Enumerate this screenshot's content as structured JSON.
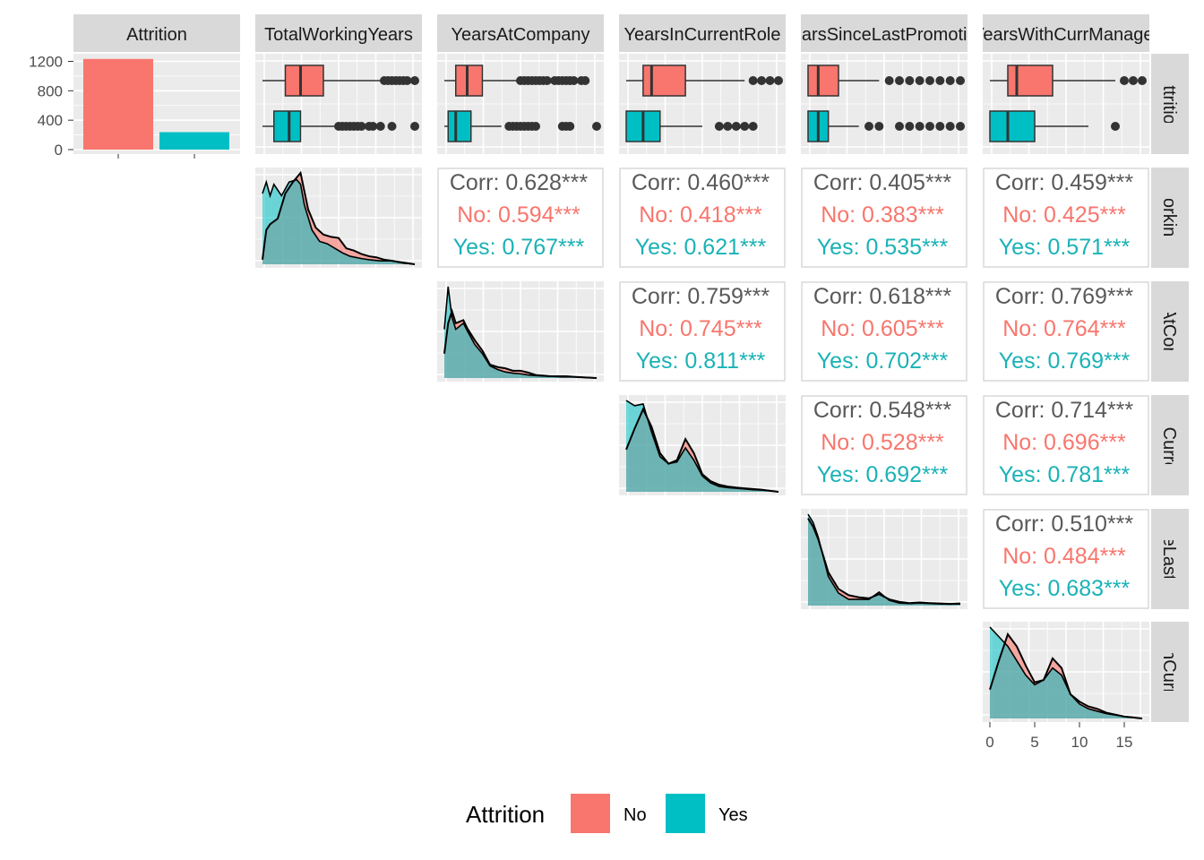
{
  "legend": {
    "title": "Attrition",
    "items": [
      {
        "label": "No",
        "color": "#F8766D"
      },
      {
        "label": "Yes",
        "color": "#00BFC4"
      }
    ]
  },
  "chart_data": {
    "type": "pairs-matrix",
    "variables": [
      "Attrition",
      "TotalWorkingYears",
      "YearsAtCompany",
      "YearsInCurrentRole",
      "YearsSinceLastPromotion",
      "YearsWithCurrManager"
    ],
    "column_strip_labels": [
      "Attrition",
      "TotalWorkingYears",
      "YearsAtCompany",
      "YearsInCurrentRole",
      "YearsSinceLastPromotion",
      "YearsWithCurrManager"
    ],
    "row_strip_labels": [
      "Attrition",
      "TotalWorkingYears",
      "YearsAtCompany",
      "YearsInCurrentRole",
      "YearsSinceLastPromotion",
      "YearsWithCurrManager"
    ],
    "colors": {
      "No": "#F8766D",
      "Yes": "#00BFC4",
      "overall": "#595959",
      "panel_bg": "#EBEBEB",
      "strip_bg": "#D9D9D9"
    },
    "attrition_counts": {
      "categories": [
        "No",
        "Yes"
      ],
      "values": [
        1233,
        237
      ],
      "y_ticks": [
        0,
        400,
        800,
        1200
      ],
      "ylim": [
        0,
        1300
      ]
    },
    "x_ticks": {
      "values": [
        0,
        5,
        10,
        15
      ],
      "labels": [
        "0",
        "5",
        "10",
        "15"
      ],
      "xlim": [
        0,
        17
      ]
    },
    "boxplots": [
      {
        "variable": "TotalWorkingYears",
        "xmax": 40,
        "No": {
          "min": 0,
          "q1": 6,
          "median": 10,
          "q3": 16,
          "max": 31,
          "outliers": [
            32,
            33,
            34,
            35,
            36,
            37,
            38,
            40
          ]
        },
        "Yes": {
          "min": 0,
          "q1": 3,
          "median": 7,
          "q3": 10,
          "max": 19,
          "outliers": [
            20,
            21,
            22,
            23,
            24,
            25,
            26,
            28,
            29,
            31,
            34,
            40
          ]
        }
      },
      {
        "variable": "YearsAtCompany",
        "xmax": 40,
        "No": {
          "min": 0,
          "q1": 3,
          "median": 6,
          "q3": 10,
          "max": 19,
          "outliers": [
            20,
            21,
            22,
            23,
            24,
            25,
            26,
            27,
            29,
            30,
            31,
            32,
            33,
            34,
            36,
            37
          ]
        },
        "Yes": {
          "min": 0,
          "q1": 1,
          "median": 3,
          "q3": 7,
          "max": 15,
          "outliers": [
            17,
            18,
            19,
            20,
            21,
            22,
            23,
            24,
            31,
            32,
            33,
            40
          ]
        }
      },
      {
        "variable": "YearsInCurrentRole",
        "xmax": 18,
        "No": {
          "min": 0,
          "q1": 2,
          "median": 3,
          "q3": 7,
          "max": 14,
          "outliers": [
            15,
            16,
            17,
            18
          ]
        },
        "Yes": {
          "min": 0,
          "q1": 0,
          "median": 2,
          "q3": 4,
          "max": 9,
          "outliers": [
            11,
            12,
            13,
            14,
            15
          ]
        }
      },
      {
        "variable": "YearsSinceLastPromotion",
        "xmax": 15,
        "No": {
          "min": 0,
          "q1": 0,
          "median": 1,
          "q3": 3,
          "max": 7,
          "outliers": [
            8,
            9,
            10,
            11,
            12,
            13,
            14,
            15
          ]
        },
        "Yes": {
          "min": 0,
          "q1": 0,
          "median": 1,
          "q3": 2,
          "max": 5,
          "outliers": [
            6,
            7,
            9,
            10,
            11,
            12,
            13,
            14,
            15
          ]
        }
      },
      {
        "variable": "YearsWithCurrManager",
        "xmax": 17,
        "No": {
          "min": 0,
          "q1": 2,
          "median": 3,
          "q3": 7,
          "max": 14,
          "outliers": [
            15,
            16,
            17
          ]
        },
        "Yes": {
          "min": 0,
          "q1": 0,
          "median": 2,
          "q3": 5,
          "max": 11,
          "outliers": [
            14
          ]
        }
      }
    ],
    "density": [
      {
        "variable": "TotalWorkingYears",
        "xmax": 40,
        "No": [
          [
            0,
            0.004
          ],
          [
            1,
            0.03
          ],
          [
            2,
            0.035
          ],
          [
            4,
            0.04
          ],
          [
            6,
            0.062
          ],
          [
            8,
            0.072
          ],
          [
            10,
            0.08
          ],
          [
            12,
            0.048
          ],
          [
            14,
            0.032
          ],
          [
            16,
            0.026
          ],
          [
            18,
            0.024
          ],
          [
            20,
            0.023
          ],
          [
            22,
            0.014
          ],
          [
            24,
            0.012
          ],
          [
            26,
            0.009
          ],
          [
            28,
            0.007
          ],
          [
            30,
            0.006
          ],
          [
            32,
            0.004
          ],
          [
            34,
            0.003
          ],
          [
            36,
            0.002
          ],
          [
            38,
            0.001
          ],
          [
            40,
            0.0
          ]
        ],
        "Yes": [
          [
            0,
            0.062
          ],
          [
            1,
            0.072
          ],
          [
            2,
            0.06
          ],
          [
            3,
            0.07
          ],
          [
            5,
            0.06
          ],
          [
            7,
            0.072
          ],
          [
            9,
            0.074
          ],
          [
            10,
            0.07
          ],
          [
            11,
            0.052
          ],
          [
            13,
            0.03
          ],
          [
            15,
            0.02
          ],
          [
            17,
            0.018
          ],
          [
            19,
            0.014
          ],
          [
            21,
            0.01
          ],
          [
            23,
            0.007
          ],
          [
            26,
            0.005
          ],
          [
            28,
            0.004
          ],
          [
            31,
            0.003
          ],
          [
            34,
            0.003
          ],
          [
            37,
            0.001
          ],
          [
            40,
            0.0
          ]
        ]
      },
      {
        "variable": "YearsAtCompany",
        "xmax": 40,
        "No": [
          [
            0,
            0.04
          ],
          [
            1,
            0.09
          ],
          [
            2,
            0.11
          ],
          [
            3,
            0.09
          ],
          [
            5,
            0.095
          ],
          [
            6,
            0.082
          ],
          [
            8,
            0.062
          ],
          [
            10,
            0.045
          ],
          [
            12,
            0.022
          ],
          [
            14,
            0.018
          ],
          [
            16,
            0.016
          ],
          [
            18,
            0.012
          ],
          [
            20,
            0.012
          ],
          [
            22,
            0.009
          ],
          [
            24,
            0.005
          ],
          [
            26,
            0.004
          ],
          [
            28,
            0.003
          ],
          [
            30,
            0.003
          ],
          [
            32,
            0.003
          ],
          [
            34,
            0.002
          ],
          [
            37,
            0.001
          ],
          [
            40,
            0.0
          ]
        ],
        "Yes": [
          [
            0,
            0.08
          ],
          [
            1,
            0.15
          ],
          [
            2,
            0.1
          ],
          [
            3,
            0.08
          ],
          [
            5,
            0.09
          ],
          [
            6,
            0.078
          ],
          [
            8,
            0.055
          ],
          [
            10,
            0.04
          ],
          [
            12,
            0.02
          ],
          [
            14,
            0.014
          ],
          [
            16,
            0.01
          ],
          [
            18,
            0.008
          ],
          [
            20,
            0.007
          ],
          [
            22,
            0.005
          ],
          [
            24,
            0.004
          ],
          [
            27,
            0.003
          ],
          [
            31,
            0.002
          ],
          [
            34,
            0.002
          ],
          [
            37,
            0.001
          ],
          [
            40,
            0.0
          ]
        ]
      },
      {
        "variable": "YearsInCurrentRole",
        "xmax": 18,
        "No": [
          [
            0,
            0.12
          ],
          [
            1,
            0.18
          ],
          [
            2,
            0.235
          ],
          [
            3,
            0.185
          ],
          [
            4,
            0.11
          ],
          [
            5,
            0.08
          ],
          [
            6,
            0.09
          ],
          [
            7,
            0.15
          ],
          [
            8,
            0.11
          ],
          [
            9,
            0.05
          ],
          [
            10,
            0.03
          ],
          [
            11,
            0.02
          ],
          [
            12,
            0.015
          ],
          [
            13,
            0.012
          ],
          [
            14,
            0.01
          ],
          [
            15,
            0.008
          ],
          [
            16,
            0.006
          ],
          [
            17,
            0.003
          ],
          [
            18,
            0.0
          ]
        ],
        "Yes": [
          [
            0,
            0.26
          ],
          [
            1,
            0.245
          ],
          [
            2,
            0.25
          ],
          [
            3,
            0.17
          ],
          [
            4,
            0.1
          ],
          [
            5,
            0.08
          ],
          [
            6,
            0.085
          ],
          [
            7,
            0.125
          ],
          [
            8,
            0.09
          ],
          [
            9,
            0.045
          ],
          [
            10,
            0.025
          ],
          [
            11,
            0.015
          ],
          [
            12,
            0.012
          ],
          [
            13,
            0.01
          ],
          [
            14,
            0.008
          ],
          [
            15,
            0.006
          ],
          [
            16,
            0.005
          ],
          [
            17,
            0.003
          ],
          [
            18,
            0.0
          ]
        ]
      },
      {
        "variable": "YearsSinceLastPromotion",
        "xmax": 15,
        "No": [
          [
            0,
            0.42
          ],
          [
            0.5,
            0.38
          ],
          [
            1,
            0.32
          ],
          [
            2,
            0.16
          ],
          [
            3,
            0.08
          ],
          [
            4,
            0.05
          ],
          [
            5,
            0.04
          ],
          [
            6,
            0.035
          ],
          [
            7,
            0.055
          ],
          [
            8,
            0.03
          ],
          [
            9,
            0.018
          ],
          [
            10,
            0.012
          ],
          [
            11,
            0.015
          ],
          [
            12,
            0.012
          ],
          [
            13,
            0.01
          ],
          [
            14,
            0.008
          ],
          [
            15,
            0.01
          ]
        ],
        "Yes": [
          [
            0,
            0.44
          ],
          [
            0.5,
            0.4
          ],
          [
            1,
            0.33
          ],
          [
            2,
            0.14
          ],
          [
            3,
            0.06
          ],
          [
            4,
            0.03
          ],
          [
            5,
            0.03
          ],
          [
            6,
            0.03
          ],
          [
            7,
            0.065
          ],
          [
            8,
            0.025
          ],
          [
            9,
            0.012
          ],
          [
            10,
            0.01
          ],
          [
            11,
            0.012
          ],
          [
            12,
            0.01
          ],
          [
            13,
            0.008
          ],
          [
            14,
            0.007
          ],
          [
            15,
            0.008
          ]
        ]
      },
      {
        "variable": "YearsWithCurrManager",
        "xmax": 17,
        "No": [
          [
            0,
            0.06
          ],
          [
            1,
            0.12
          ],
          [
            2,
            0.175
          ],
          [
            3,
            0.15
          ],
          [
            4,
            0.11
          ],
          [
            5,
            0.075
          ],
          [
            6,
            0.08
          ],
          [
            7,
            0.125
          ],
          [
            8,
            0.105
          ],
          [
            9,
            0.05
          ],
          [
            10,
            0.035
          ],
          [
            11,
            0.025
          ],
          [
            12,
            0.02
          ],
          [
            13,
            0.012
          ],
          [
            14,
            0.008
          ],
          [
            15,
            0.004
          ],
          [
            16,
            0.002
          ],
          [
            17,
            0.0
          ]
        ],
        "Yes": [
          [
            0,
            0.19
          ],
          [
            1,
            0.17
          ],
          [
            2,
            0.15
          ],
          [
            3,
            0.12
          ],
          [
            4,
            0.09
          ],
          [
            5,
            0.07
          ],
          [
            6,
            0.08
          ],
          [
            7,
            0.105
          ],
          [
            8,
            0.09
          ],
          [
            9,
            0.05
          ],
          [
            10,
            0.03
          ],
          [
            11,
            0.02
          ],
          [
            12,
            0.015
          ],
          [
            13,
            0.01
          ],
          [
            14,
            0.007
          ],
          [
            15,
            0.004
          ],
          [
            16,
            0.002
          ],
          [
            17,
            0.0
          ]
        ]
      }
    ],
    "correlations": [
      {
        "row": "TotalWorkingYears",
        "col": "YearsAtCompany",
        "overall": "Corr: 0.628***",
        "no": "No: 0.594***",
        "yes": "Yes: 0.767***"
      },
      {
        "row": "TotalWorkingYears",
        "col": "YearsInCurrentRole",
        "overall": "Corr: 0.460***",
        "no": "No: 0.418***",
        "yes": "Yes: 0.621***"
      },
      {
        "row": "TotalWorkingYears",
        "col": "YearsSinceLastPromotion",
        "overall": "Corr: 0.405***",
        "no": "No: 0.383***",
        "yes": "Yes: 0.535***"
      },
      {
        "row": "TotalWorkingYears",
        "col": "YearsWithCurrManager",
        "overall": "Corr: 0.459***",
        "no": "No: 0.425***",
        "yes": "Yes: 0.571***"
      },
      {
        "row": "YearsAtCompany",
        "col": "YearsInCurrentRole",
        "overall": "Corr: 0.759***",
        "no": "No: 0.745***",
        "yes": "Yes: 0.811***"
      },
      {
        "row": "YearsAtCompany",
        "col": "YearsSinceLastPromotion",
        "overall": "Corr: 0.618***",
        "no": "No: 0.605***",
        "yes": "Yes: 0.702***"
      },
      {
        "row": "YearsAtCompany",
        "col": "YearsWithCurrManager",
        "overall": "Corr: 0.769***",
        "no": "No: 0.764***",
        "yes": "Yes: 0.769***"
      },
      {
        "row": "YearsInCurrentRole",
        "col": "YearsSinceLastPromotion",
        "overall": "Corr: 0.548***",
        "no": "No: 0.528***",
        "yes": "Yes: 0.692***"
      },
      {
        "row": "YearsInCurrentRole",
        "col": "YearsWithCurrManager",
        "overall": "Corr: 0.714***",
        "no": "No: 0.696***",
        "yes": "Yes: 0.781***"
      },
      {
        "row": "YearsSinceLastPromotion",
        "col": "YearsWithCurrManager",
        "overall": "Corr: 0.510***",
        "no": "No: 0.484***",
        "yes": "Yes: 0.683***"
      }
    ]
  }
}
